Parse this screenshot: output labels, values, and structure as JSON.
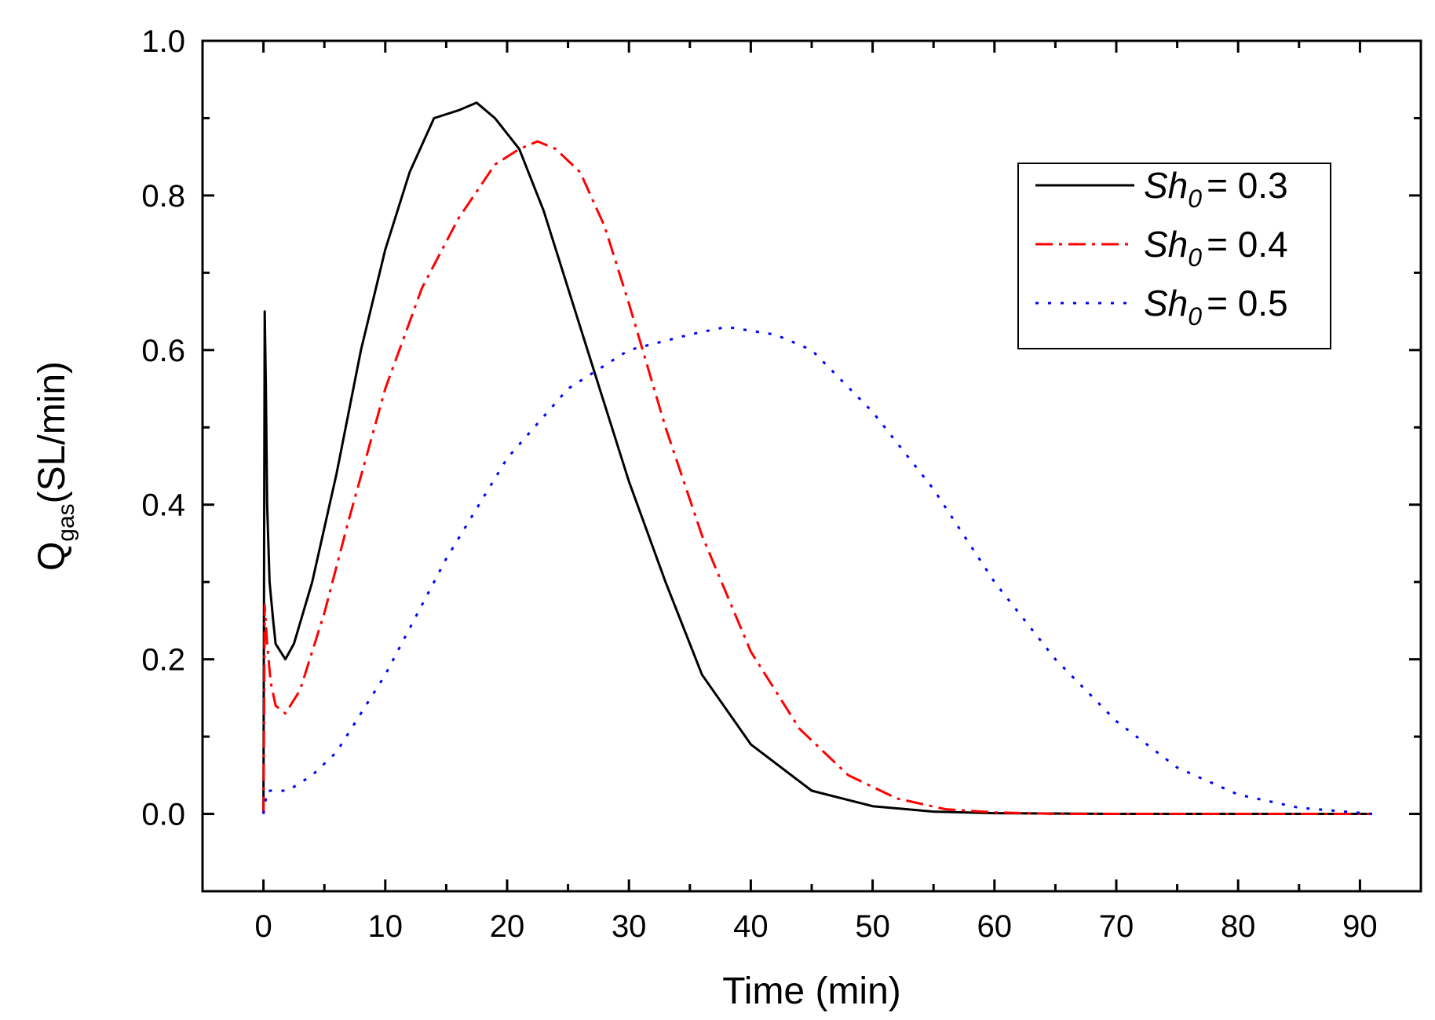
{
  "chart_data": {
    "type": "line",
    "title": "",
    "xlabel": "Time (min)",
    "ylabel": {
      "main": "Q",
      "subscript": "gas",
      "units": "(SL/min)"
    },
    "xlim": [
      -5,
      95
    ],
    "ylim": [
      -0.1,
      1.0
    ],
    "xticks": [
      0,
      10,
      20,
      30,
      40,
      50,
      60,
      70,
      80,
      90
    ],
    "xtick_labels": [
      "0",
      "10",
      "20",
      "30",
      "40",
      "50",
      "60",
      "70",
      "80",
      "90"
    ],
    "yticks": [
      0.0,
      0.2,
      0.4,
      0.6,
      0.8,
      1.0
    ],
    "ytick_labels": [
      "0.0",
      "0.2",
      "0.4",
      "0.6",
      "0.8",
      "1.0"
    ],
    "grid": false,
    "legend_position": "top-right",
    "series": [
      {
        "name": "Sh0 = 0.3",
        "label_main": "Sh",
        "label_sub": "0",
        "label_value": "= 0.3",
        "color": "#000000",
        "style": "solid",
        "x": [
          0,
          0.1,
          0.2,
          0.3,
          0.5,
          0.8,
          1.0,
          1.8,
          2.5,
          4,
          6,
          8,
          10,
          12,
          14,
          16,
          17.5,
          19,
          21,
          23,
          25,
          27,
          30,
          33,
          36,
          40,
          45,
          50,
          55,
          60,
          70,
          80,
          91
        ],
        "y": [
          0,
          0.65,
          0.55,
          0.4,
          0.3,
          0.25,
          0.22,
          0.2,
          0.22,
          0.3,
          0.44,
          0.6,
          0.73,
          0.83,
          0.9,
          0.91,
          0.92,
          0.9,
          0.86,
          0.78,
          0.68,
          0.58,
          0.43,
          0.3,
          0.18,
          0.09,
          0.03,
          0.01,
          0.003,
          0.001,
          0,
          0,
          0
        ]
      },
      {
        "name": "Sh0 = 0.4",
        "label_main": "Sh",
        "label_sub": "0",
        "label_value": "= 0.4",
        "color": "#ff0000",
        "style": "dashdot",
        "x": [
          0,
          0.1,
          0.3,
          0.6,
          1.0,
          1.8,
          3,
          5,
          7,
          10,
          13,
          16,
          19,
          21,
          22.5,
          24,
          26,
          28,
          30,
          33,
          36,
          40,
          44,
          48,
          52,
          56,
          60,
          65,
          70,
          80,
          91
        ],
        "y": [
          0,
          0.27,
          0.22,
          0.17,
          0.14,
          0.13,
          0.16,
          0.26,
          0.38,
          0.55,
          0.68,
          0.77,
          0.84,
          0.86,
          0.87,
          0.86,
          0.83,
          0.76,
          0.66,
          0.5,
          0.36,
          0.21,
          0.11,
          0.05,
          0.02,
          0.006,
          0.002,
          0,
          0,
          0,
          0
        ]
      },
      {
        "name": "Sh0 = 0.5",
        "label_main": "Sh",
        "label_sub": "0",
        "label_value": "= 0.5",
        "color": "#0000ff",
        "style": "dotted",
        "x": [
          0,
          0.3,
          1,
          2,
          4,
          6,
          10,
          15,
          20,
          25,
          30,
          35,
          38,
          42,
          45,
          50,
          55,
          60,
          65,
          70,
          75,
          80,
          85,
          91
        ],
        "y": [
          0,
          0.03,
          0.03,
          0.03,
          0.05,
          0.08,
          0.18,
          0.33,
          0.46,
          0.55,
          0.6,
          0.62,
          0.63,
          0.62,
          0.6,
          0.52,
          0.42,
          0.3,
          0.2,
          0.12,
          0.06,
          0.025,
          0.008,
          0
        ]
      }
    ]
  }
}
